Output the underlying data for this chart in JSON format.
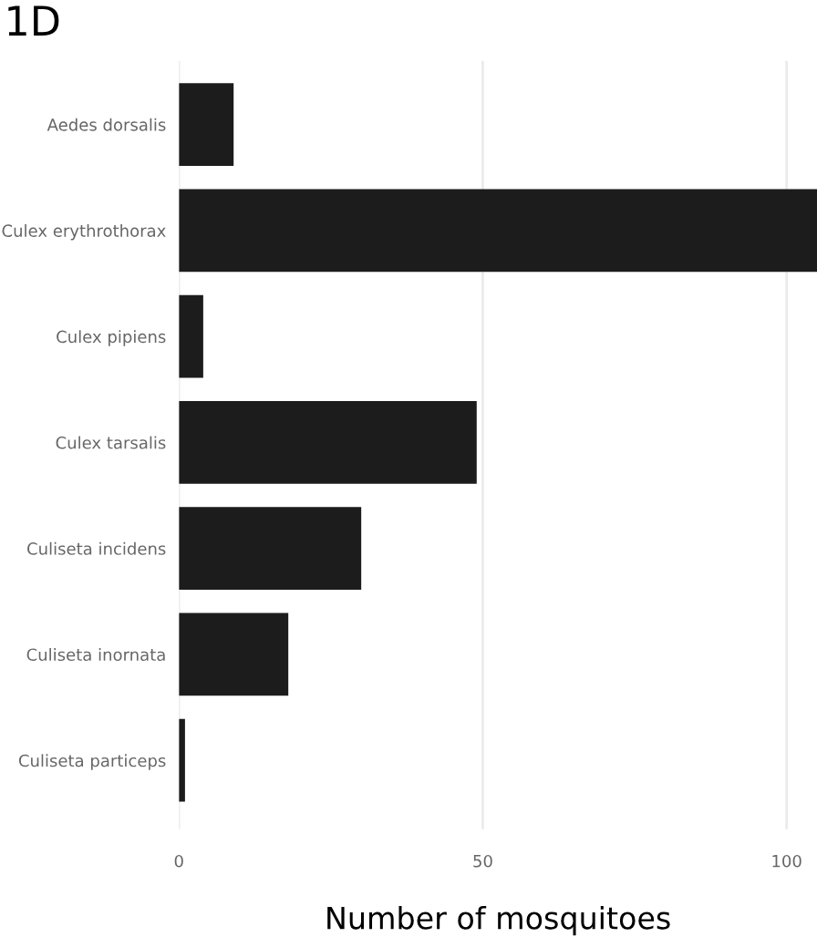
{
  "chart_data": {
    "type": "bar",
    "orientation": "horizontal",
    "title": "1D",
    "xlabel": "Number of mosquitoes",
    "categories": [
      "Aedes dorsalis",
      "Culex erythrothorax",
      "Culex pipiens",
      "Culex tarsalis",
      "Culiseta incidens",
      "Culiseta inornata",
      "Culiseta particeps"
    ],
    "values": [
      9,
      105,
      4,
      49,
      30,
      18,
      1
    ],
    "color": "#1c1c1c",
    "xlim": [
      0,
      105
    ],
    "xticks": [
      0,
      50,
      100
    ],
    "grid": "x",
    "legend": false
  }
}
